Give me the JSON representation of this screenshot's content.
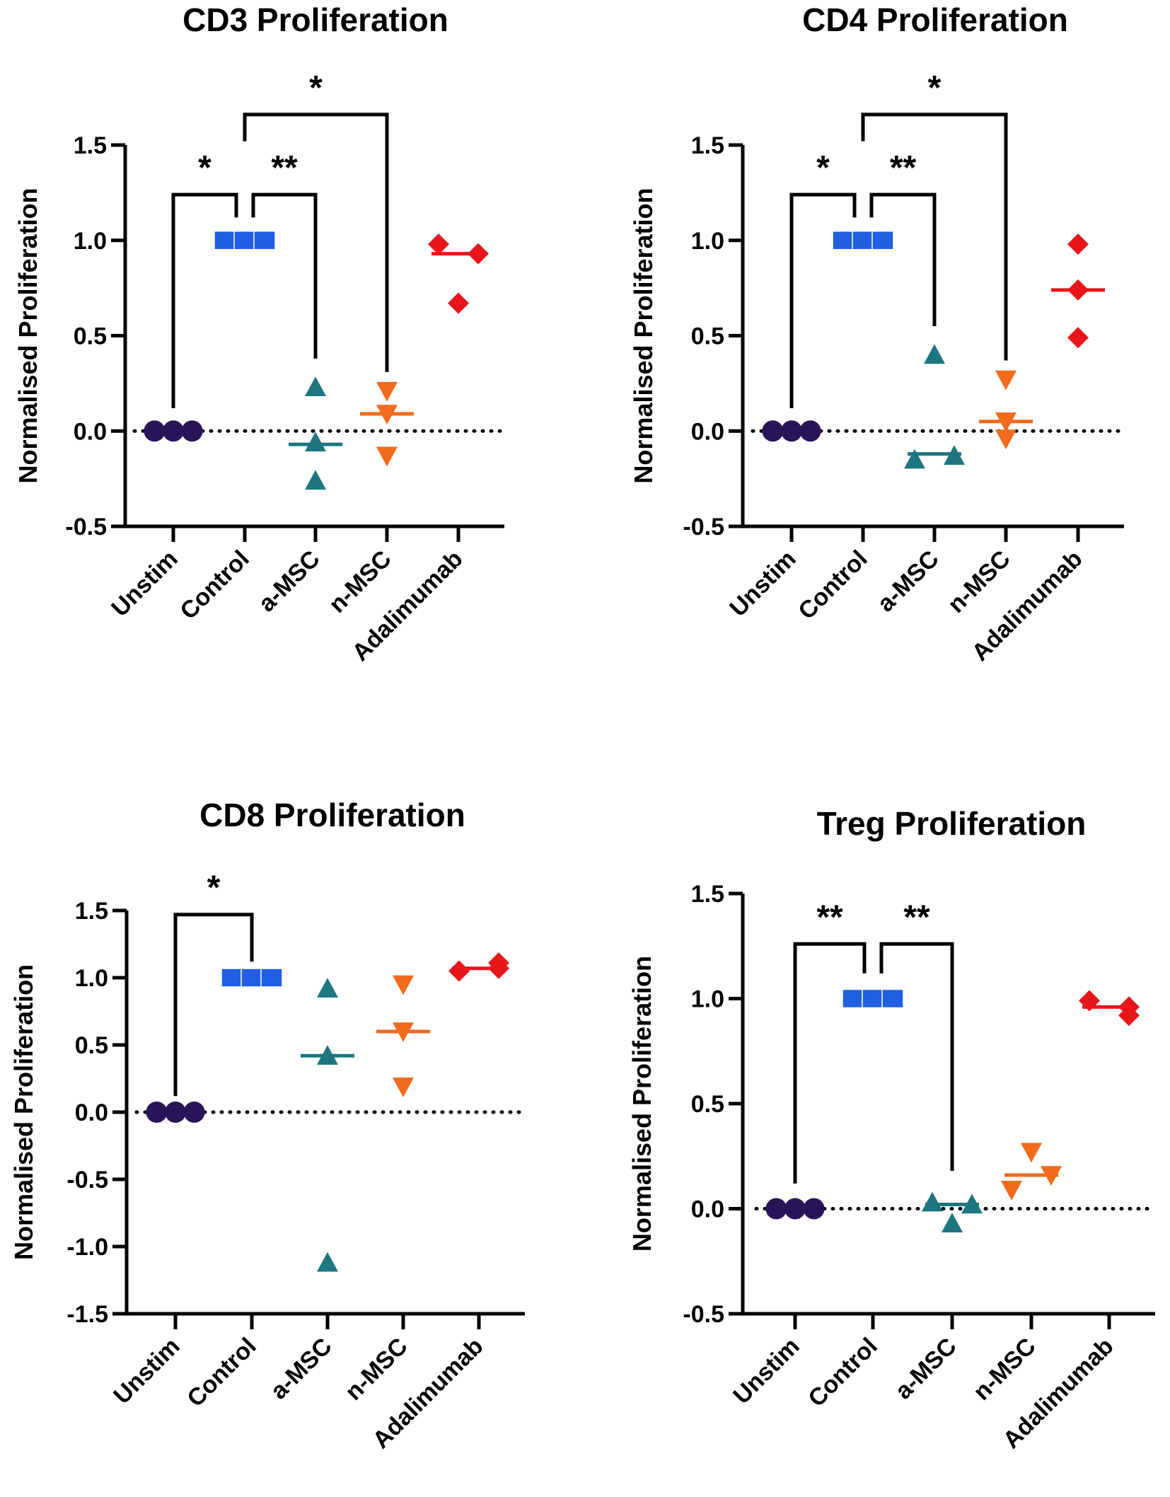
{
  "chart_data": [
    {
      "type": "scatter",
      "title": "CD3 Proliferation",
      "xlabel": "",
      "ylabel": "Normalised Proliferation",
      "ylim": [
        -0.5,
        1.5
      ],
      "yticks": [
        "-0.5",
        "0.0",
        "0.5",
        "1.0",
        "1.5"
      ],
      "categories": [
        "Unstim",
        "Control",
        "a-MSC",
        "n-MSC",
        "Adalimumab"
      ],
      "reference_line": 0,
      "series": [
        {
          "name": "Unstim",
          "marker": "circle",
          "color": "#2a1458",
          "values": [
            0,
            0,
            0
          ],
          "center": 0
        },
        {
          "name": "Control",
          "marker": "square",
          "color": "#1f5fe0",
          "values": [
            1,
            1,
            1
          ],
          "center": 1
        },
        {
          "name": "a-MSC",
          "marker": "triangle-up",
          "color": "#1d7680",
          "values": [
            0.23,
            -0.06,
            -0.26
          ],
          "center": -0.07
        },
        {
          "name": "n-MSC",
          "marker": "triangle-down",
          "color": "#f26a1b",
          "values": [
            0.21,
            0.09,
            -0.13
          ],
          "center": 0.09
        },
        {
          "name": "Adalimumab",
          "marker": "diamond",
          "color": "#e8161b",
          "values": [
            0.98,
            0.93,
            0.67
          ],
          "center": 0.93
        }
      ],
      "significance": [
        {
          "from": "Unstim",
          "to": "Control",
          "label": "*",
          "level": 1.24
        },
        {
          "from": "Control",
          "to": "a-MSC",
          "label": "**",
          "level": 1.24
        },
        {
          "from": "Control",
          "to": "n-MSC",
          "label": "*",
          "level": 1.66
        }
      ]
    },
    {
      "type": "scatter",
      "title": "CD4 Proliferation",
      "xlabel": "",
      "ylabel": "Normalised Proliferation",
      "ylim": [
        -0.5,
        1.5
      ],
      "yticks": [
        "-0.5",
        "0.0",
        "0.5",
        "1.0",
        "1.5"
      ],
      "categories": [
        "Unstim",
        "Control",
        "a-MSC",
        "n-MSC",
        "Adalimumab"
      ],
      "reference_line": 0,
      "series": [
        {
          "name": "Unstim",
          "marker": "circle",
          "color": "#2a1458",
          "values": [
            0,
            0,
            0
          ],
          "center": 0
        },
        {
          "name": "Control",
          "marker": "square",
          "color": "#1f5fe0",
          "values": [
            1,
            1,
            1
          ],
          "center": 1
        },
        {
          "name": "a-MSC",
          "marker": "triangle-up",
          "color": "#1d7680",
          "values": [
            0.4,
            -0.15,
            -0.13
          ],
          "center": -0.12
        },
        {
          "name": "n-MSC",
          "marker": "triangle-down",
          "color": "#f26a1b",
          "values": [
            0.27,
            0.05,
            -0.04
          ],
          "center": 0.05
        },
        {
          "name": "Adalimumab",
          "marker": "diamond",
          "color": "#e8161b",
          "values": [
            0.98,
            0.74,
            0.49
          ],
          "center": 0.74
        }
      ],
      "significance": [
        {
          "from": "Unstim",
          "to": "Control",
          "label": "*",
          "level": 1.24
        },
        {
          "from": "Control",
          "to": "a-MSC",
          "label": "**",
          "level": 1.24
        },
        {
          "from": "Control",
          "to": "n-MSC",
          "label": "*",
          "level": 1.66
        }
      ]
    },
    {
      "type": "scatter",
      "title": "CD8 Proliferation",
      "xlabel": "",
      "ylabel": "Normalised Proliferation",
      "ylim": [
        -1.5,
        1.5
      ],
      "yticks": [
        "-1.5",
        "-1.0",
        "-0.5",
        "0.0",
        "0.5",
        "1.0",
        "1.5"
      ],
      "categories": [
        "Unstim",
        "Control",
        "a-MSC",
        "n-MSC",
        "Adalimumab"
      ],
      "reference_line": 0,
      "series": [
        {
          "name": "Unstim",
          "marker": "circle",
          "color": "#2a1458",
          "values": [
            0,
            0,
            0
          ],
          "center": 0
        },
        {
          "name": "Control",
          "marker": "square",
          "color": "#1f5fe0",
          "values": [
            1,
            1,
            1
          ],
          "center": 1
        },
        {
          "name": "a-MSC",
          "marker": "triangle-up",
          "color": "#1d7680",
          "values": [
            0.92,
            0.42,
            -1.12
          ],
          "center": 0.42
        },
        {
          "name": "n-MSC",
          "marker": "triangle-down",
          "color": "#f26a1b",
          "values": [
            0.95,
            0.6,
            0.19
          ],
          "center": 0.6
        },
        {
          "name": "Adalimumab",
          "marker": "diamond",
          "color": "#e8161b",
          "values": [
            1.05,
            1.11,
            1.07
          ],
          "center": 1.07
        }
      ],
      "significance": [
        {
          "from": "Unstim",
          "to": "Control",
          "label": "*",
          "level": 1.47
        }
      ]
    },
    {
      "type": "scatter",
      "title": "Treg Proliferation",
      "xlabel": "",
      "ylabel": "Normalised Proliferation",
      "ylim": [
        -0.5,
        1.5
      ],
      "yticks": [
        "-0.5",
        "0.0",
        "0.5",
        "1.0",
        "1.5"
      ],
      "categories": [
        "Unstim",
        "Control",
        "a-MSC",
        "n-MSC",
        "Adalimumab"
      ],
      "reference_line": 0,
      "series": [
        {
          "name": "Unstim",
          "marker": "circle",
          "color": "#2a1458",
          "values": [
            0,
            0,
            0
          ],
          "center": 0
        },
        {
          "name": "Control",
          "marker": "square",
          "color": "#1f5fe0",
          "values": [
            1,
            1,
            1
          ],
          "center": 1
        },
        {
          "name": "a-MSC",
          "marker": "triangle-up",
          "color": "#1d7680",
          "values": [
            0.03,
            -0.07,
            0.02
          ],
          "center": 0.02
        },
        {
          "name": "n-MSC",
          "marker": "triangle-down",
          "color": "#f26a1b",
          "values": [
            0.27,
            0.09,
            0.16
          ],
          "center": 0.16
        },
        {
          "name": "Adalimumab",
          "marker": "diamond",
          "color": "#e8161b",
          "values": [
            0.99,
            0.92,
            0.96
          ],
          "center": 0.96
        }
      ],
      "significance": [
        {
          "from": "Unstim",
          "to": "Control",
          "label": "**",
          "level": 1.26
        },
        {
          "from": "Control",
          "to": "a-MSC",
          "label": "**",
          "level": 1.26
        }
      ]
    }
  ]
}
